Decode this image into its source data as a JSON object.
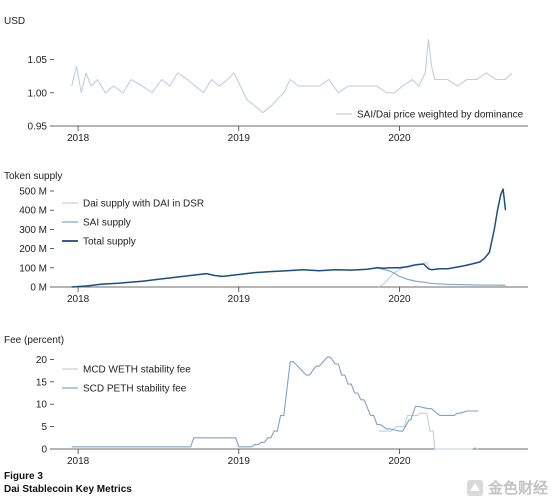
{
  "figure": {
    "label": "Figure 3",
    "title": "Dai Stablecoin Key Metrics",
    "watermark": "金色财经",
    "colors": {
      "light": "#bcd0e4",
      "mid": "#7ea3c6",
      "dark": "#1c4f80",
      "axis": "#3a3a3a"
    }
  },
  "chart_data": [
    {
      "type": "line",
      "ylabel": "USD",
      "ylim": [
        0.95,
        1.09
      ],
      "xlim": [
        2017.85,
        2020.8
      ],
      "yticks": [
        {
          "v": 1.05,
          "label": "1.05"
        },
        {
          "v": 1.0,
          "label": "1.00"
        },
        {
          "v": 0.95,
          "label": "0.95"
        }
      ],
      "xticks": [
        {
          "v": 2018,
          "label": "2018"
        },
        {
          "v": 2019,
          "label": "2019"
        },
        {
          "v": 2020,
          "label": "2020"
        }
      ],
      "legend_position": "bottom-right",
      "series": [
        {
          "name": "SAI/Dai price weighted by dominance",
          "color": "#bcd0e4",
          "x": [
            2017.96,
            2017.99,
            2018.02,
            2018.05,
            2018.08,
            2018.12,
            2018.17,
            2018.22,
            2018.28,
            2018.33,
            2018.4,
            2018.46,
            2018.52,
            2018.57,
            2018.62,
            2018.68,
            2018.73,
            2018.78,
            2018.83,
            2018.88,
            2018.93,
            2018.97,
            2019.01,
            2019.05,
            2019.1,
            2019.15,
            2019.2,
            2019.24,
            2019.28,
            2019.32,
            2019.37,
            2019.43,
            2019.5,
            2019.56,
            2019.62,
            2019.68,
            2019.74,
            2019.8,
            2019.86,
            2019.92,
            2019.97,
            2020.02,
            2020.08,
            2020.12,
            2020.16,
            2020.18,
            2020.2,
            2020.22,
            2020.25,
            2020.3,
            2020.36,
            2020.42,
            2020.48,
            2020.54,
            2020.6,
            2020.66,
            2020.7
          ],
          "y": [
            1.01,
            1.04,
            1.0,
            1.03,
            1.01,
            1.02,
            1.0,
            1.01,
            1.0,
            1.02,
            1.01,
            1.0,
            1.02,
            1.01,
            1.03,
            1.02,
            1.01,
            1.0,
            1.02,
            1.01,
            1.02,
            1.03,
            1.01,
            0.99,
            0.98,
            0.97,
            0.98,
            0.99,
            1.0,
            1.02,
            1.01,
            1.01,
            1.01,
            1.02,
            1.0,
            1.01,
            1.01,
            1.01,
            1.01,
            1.0,
            1.0,
            1.01,
            1.02,
            1.01,
            1.03,
            1.08,
            1.04,
            1.02,
            1.02,
            1.02,
            1.01,
            1.02,
            1.02,
            1.03,
            1.02,
            1.02,
            1.03
          ]
        }
      ]
    },
    {
      "type": "line",
      "ylabel": "Token supply",
      "ylim": [
        0,
        500
      ],
      "xlim": [
        2017.85,
        2020.8
      ],
      "yticks": [
        {
          "v": 500,
          "label": "500 M"
        },
        {
          "v": 400,
          "label": "400 M"
        },
        {
          "v": 300,
          "label": "300 M"
        },
        {
          "v": 200,
          "label": "200 M"
        },
        {
          "v": 100,
          "label": "100 M"
        },
        {
          "v": 0,
          "label": "0 M"
        }
      ],
      "xticks": [
        {
          "v": 2018,
          "label": "2018"
        },
        {
          "v": 2019,
          "label": "2019"
        },
        {
          "v": 2020,
          "label": "2020"
        }
      ],
      "legend_position": "top-left",
      "series": [
        {
          "name": "Dai supply with DAI in DSR",
          "color": "#bcd0e4",
          "x": [
            2019.87,
            2019.9,
            2019.93,
            2019.96,
            2020.0,
            2020.05,
            2020.1,
            2020.14,
            2020.17,
            2020.19
          ],
          "y": [
            0,
            15,
            40,
            70,
            90,
            110,
            118,
            120,
            128,
            90
          ]
        },
        {
          "name": "SAI supply",
          "color": "#7ea3c6",
          "x": [
            2017.96,
            2018.05,
            2018.15,
            2018.25,
            2018.4,
            2018.5,
            2018.6,
            2018.7,
            2018.8,
            2018.85,
            2018.9,
            2019.0,
            2019.1,
            2019.2,
            2019.3,
            2019.4,
            2019.5,
            2019.6,
            2019.7,
            2019.8,
            2019.86,
            2019.9,
            2019.95,
            2020.0,
            2020.05,
            2020.1,
            2020.15,
            2020.2,
            2020.3,
            2020.4,
            2020.5,
            2020.6,
            2020.66
          ],
          "y": [
            0,
            5,
            15,
            20,
            30,
            40,
            50,
            60,
            70,
            60,
            55,
            65,
            75,
            80,
            85,
            90,
            85,
            90,
            88,
            92,
            100,
            92,
            80,
            55,
            40,
            30,
            25,
            18,
            14,
            12,
            10,
            10,
            9
          ]
        },
        {
          "name": "Total supply",
          "color": "#1c4f80",
          "x": [
            2017.96,
            2018.05,
            2018.15,
            2018.25,
            2018.4,
            2018.5,
            2018.6,
            2018.7,
            2018.8,
            2018.85,
            2018.9,
            2019.0,
            2019.1,
            2019.2,
            2019.3,
            2019.4,
            2019.5,
            2019.6,
            2019.7,
            2019.8,
            2019.86,
            2019.9,
            2019.95,
            2020.0,
            2020.05,
            2020.1,
            2020.15,
            2020.18,
            2020.2,
            2020.25,
            2020.3,
            2020.4,
            2020.45,
            2020.5,
            2020.53,
            2020.56,
            2020.59,
            2020.61,
            2020.63,
            2020.645,
            2020.66
          ],
          "y": [
            0,
            5,
            15,
            20,
            30,
            40,
            50,
            60,
            70,
            60,
            55,
            65,
            75,
            80,
            85,
            90,
            85,
            90,
            88,
            92,
            100,
            98,
            100,
            100,
            105,
            115,
            120,
            95,
            90,
            95,
            95,
            110,
            120,
            130,
            150,
            180,
            300,
            400,
            480,
            510,
            400
          ]
        }
      ]
    },
    {
      "type": "line",
      "ylabel": "Fee (percent)",
      "ylim": [
        0,
        21
      ],
      "xlim": [
        2017.85,
        2020.8
      ],
      "yticks": [
        {
          "v": 20,
          "label": "20"
        },
        {
          "v": 15,
          "label": "15"
        },
        {
          "v": 10,
          "label": "10"
        },
        {
          "v": 5,
          "label": "5"
        },
        {
          "v": 0,
          "label": "0"
        }
      ],
      "xticks": [
        {
          "v": 2018,
          "label": "2018"
        },
        {
          "v": 2019,
          "label": "2019"
        },
        {
          "v": 2020,
          "label": "2020"
        }
      ],
      "legend_position": "top-left",
      "series": [
        {
          "name": "MCD WETH stability fee",
          "color": "#bcd0e4",
          "x": [
            2019.87,
            2019.95,
            2019.98,
            2020.03,
            2020.05,
            2020.11,
            2020.13,
            2020.17,
            2020.19,
            2020.21,
            2020.22,
            2020.23,
            2020.45,
            2020.47,
            2020.49
          ],
          "y": [
            4,
            4,
            5,
            5,
            7.5,
            7.5,
            8,
            8,
            4,
            4,
            0,
            0,
            0,
            0.3,
            0
          ]
        },
        {
          "name": "SCD PETH stability fee",
          "color": "#7ea3c6",
          "x": [
            2017.96,
            2018.7,
            2018.72,
            2018.98,
            2019.0,
            2019.08,
            2019.1,
            2019.12,
            2019.14,
            2019.16,
            2019.18,
            2019.2,
            2019.22,
            2019.24,
            2019.26,
            2019.28,
            2019.32,
            2019.34,
            2019.42,
            2019.44,
            2019.48,
            2019.5,
            2019.55,
            2019.57,
            2019.6,
            2019.62,
            2019.64,
            2019.66,
            2019.68,
            2019.7,
            2019.72,
            2019.74,
            2019.76,
            2019.78,
            2019.82,
            2019.84,
            2019.86,
            2019.88,
            2019.92,
            2019.94,
            2020.0,
            2020.02,
            2020.06,
            2020.07,
            2020.1,
            2020.12,
            2020.18,
            2020.2,
            2020.25,
            2020.27,
            2020.32,
            2020.34,
            2020.36,
            2020.38,
            2020.42,
            2020.44,
            2020.49
          ],
          "y": [
            0.5,
            0.5,
            2.5,
            2.5,
            0.5,
            0.5,
            1,
            1,
            1.5,
            1.5,
            2.5,
            2.5,
            4,
            4,
            7.5,
            7.5,
            19.5,
            19.5,
            16.5,
            16.5,
            18.5,
            18.5,
            20.5,
            20.5,
            19,
            19,
            16.5,
            16.5,
            14.5,
            14.5,
            12.5,
            12.5,
            11,
            11,
            7.5,
            7.5,
            5.5,
            5.5,
            4.5,
            4.5,
            4,
            4,
            6.5,
            6.5,
            9.5,
            9.5,
            9,
            9,
            7.5,
            7.5,
            7.5,
            7.5,
            8,
            8,
            8.5,
            8.5,
            8.5
          ]
        }
      ]
    }
  ]
}
